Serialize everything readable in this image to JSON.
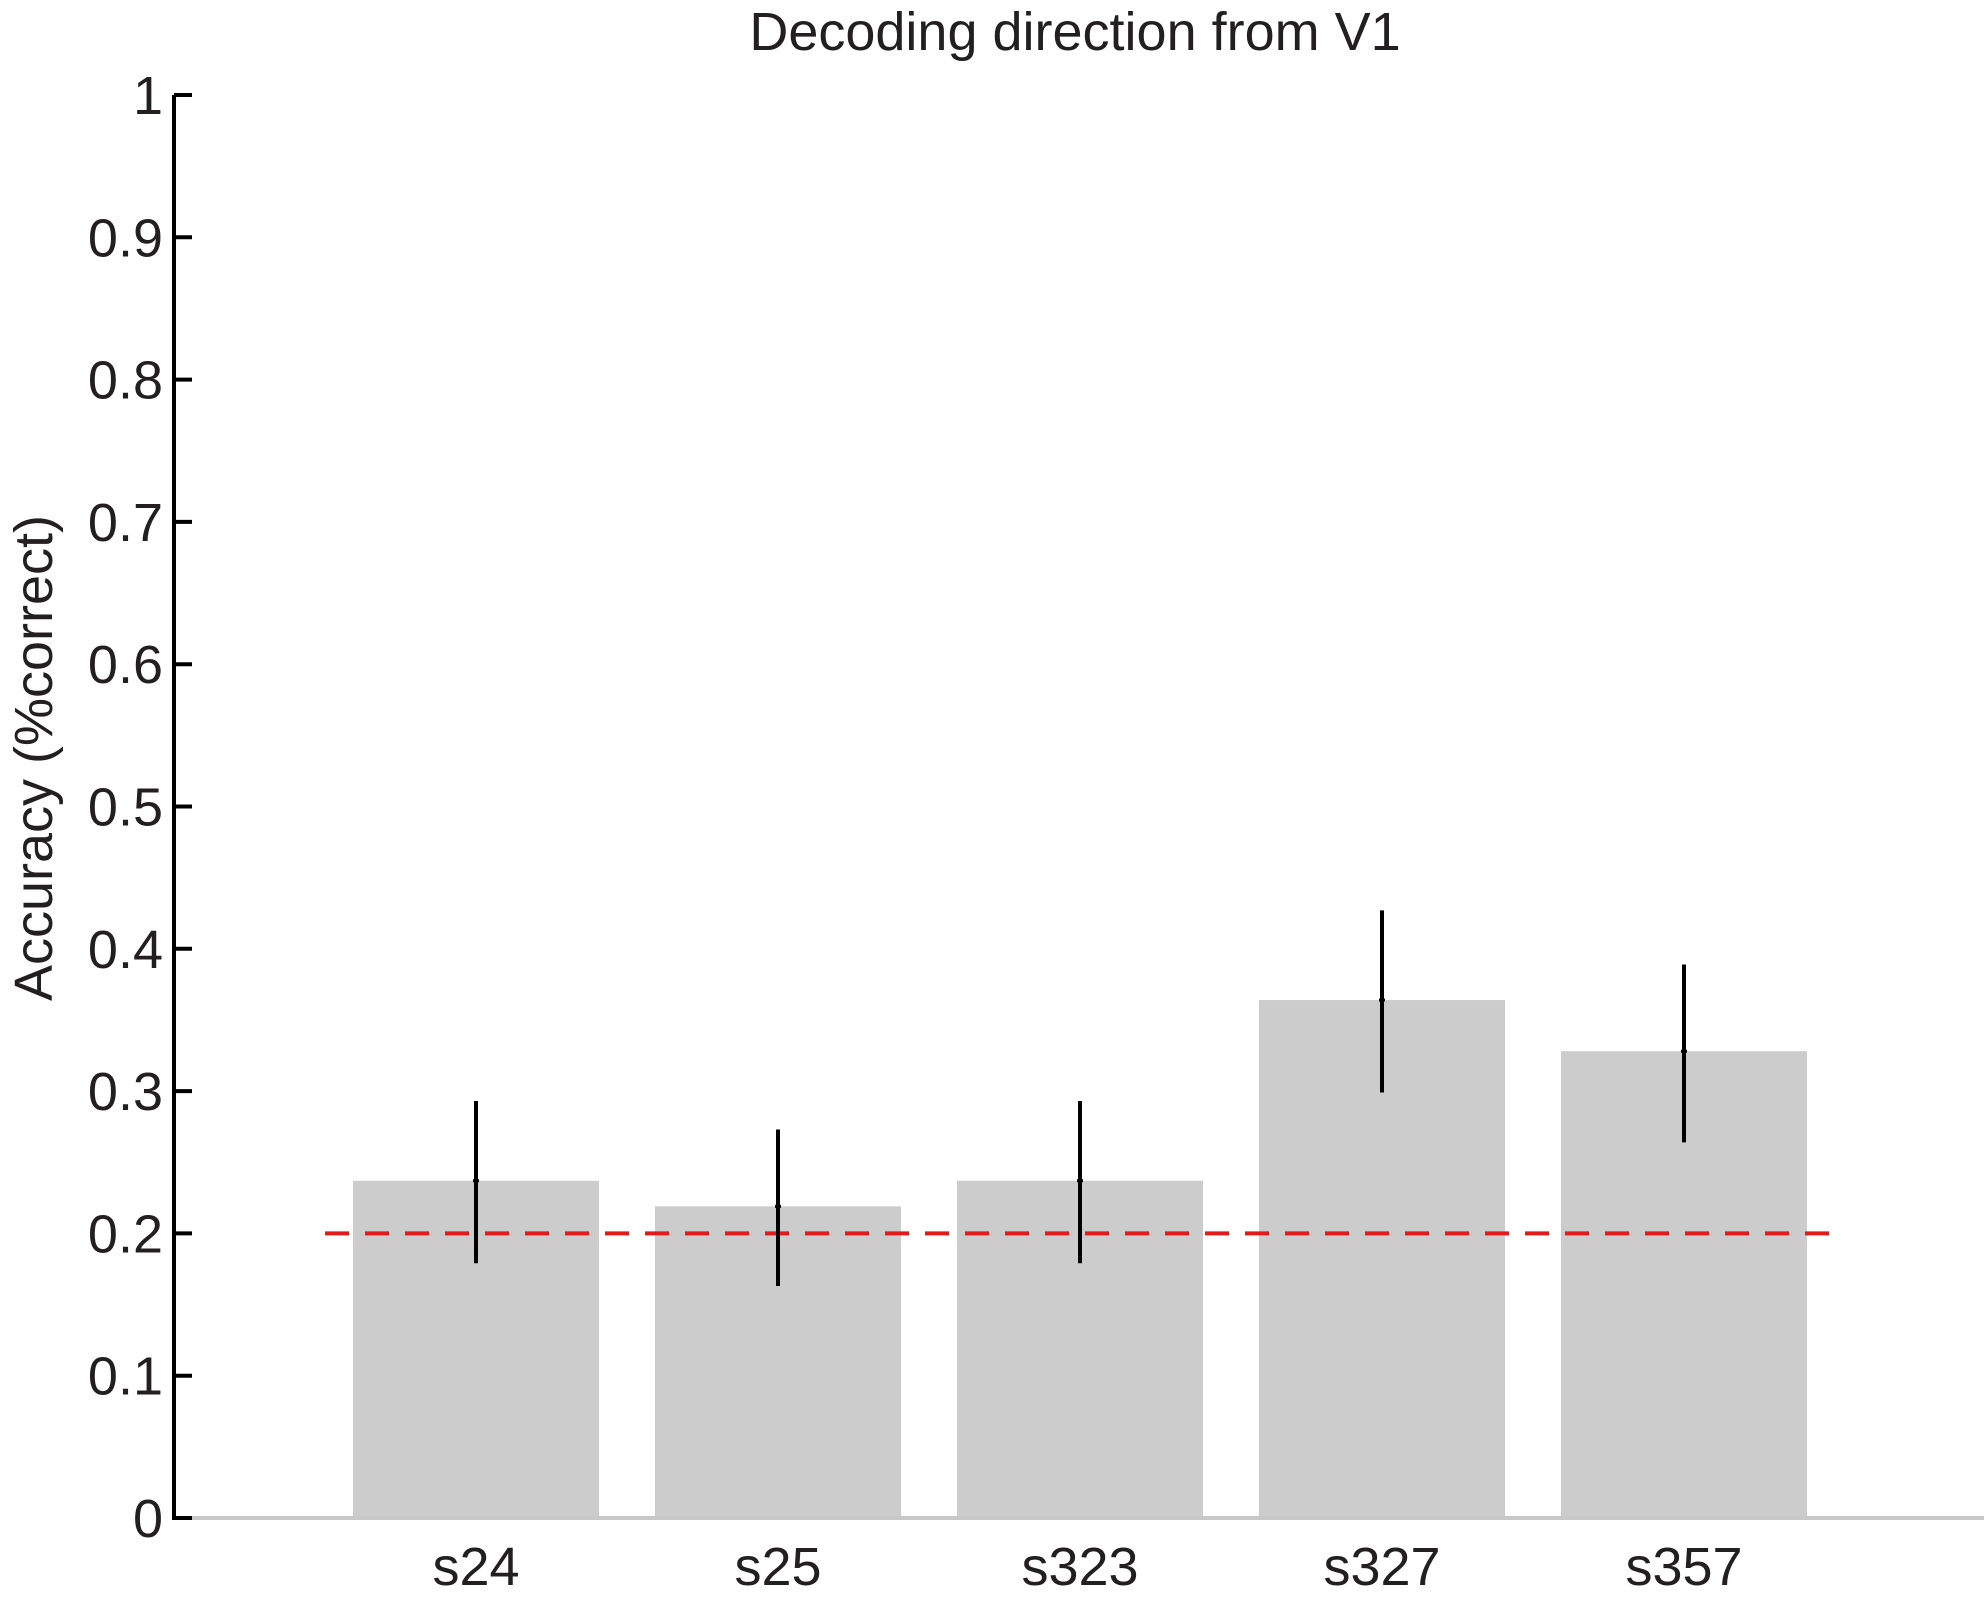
{
  "chart_data": {
    "type": "bar",
    "title": "Decoding direction from V1",
    "xlabel": "",
    "ylabel": "Accuracy (%correct)",
    "categories": [
      "s24",
      "s25",
      "s323",
      "s327",
      "s357"
    ],
    "values": [
      0.237,
      0.219,
      0.237,
      0.364,
      0.328
    ],
    "error_low": [
      0.179,
      0.163,
      0.179,
      0.299,
      0.264
    ],
    "error_high": [
      0.293,
      0.273,
      0.293,
      0.427,
      0.389
    ],
    "ylim": [
      0,
      1
    ],
    "yticks": [
      "0",
      "0.1",
      "0.2",
      "0.3",
      "0.4",
      "0.5",
      "0.6",
      "0.7",
      "0.8",
      "0.9",
      "1"
    ],
    "chance_level": 0.2,
    "grid": false,
    "colors": {
      "bar": "#cccccc",
      "error_bar": "#000000",
      "chance_line": "#e31a1c",
      "axis": "#000000",
      "baseline": "#c8c8c8",
      "text": "#231f20"
    }
  }
}
